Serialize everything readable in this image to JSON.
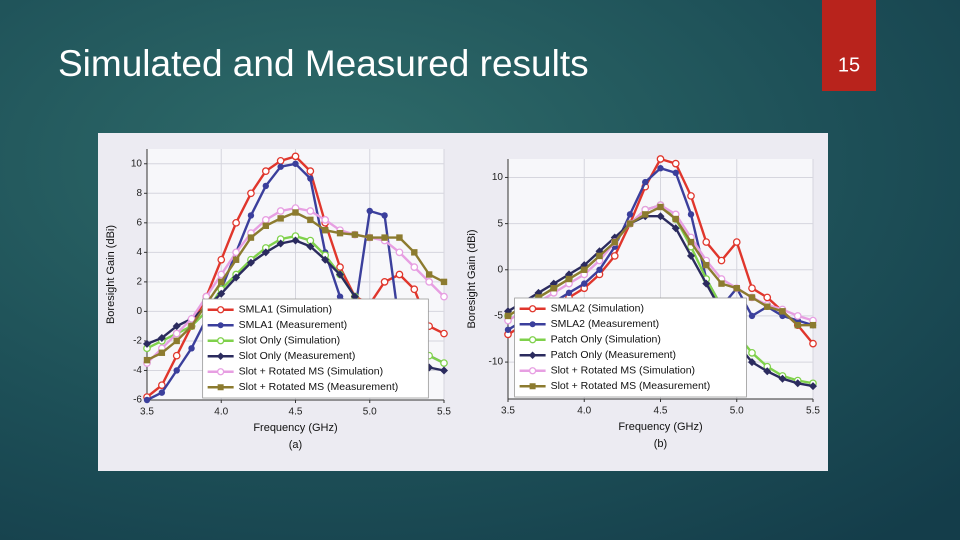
{
  "slide": {
    "title": "Simulated and Measured results",
    "number": "15"
  },
  "chart_data": [
    {
      "type": "line",
      "caption": "(a)",
      "x_label": "Frequency (GHz)",
      "y_label": "Boresight Gain (dBi)",
      "x": [
        3.5,
        3.6,
        3.7,
        3.8,
        3.9,
        4.0,
        4.1,
        4.2,
        4.3,
        4.4,
        4.5,
        4.6,
        4.7,
        4.8,
        4.9,
        5.0,
        5.1,
        5.2,
        5.3,
        5.4,
        5.5
      ],
      "xlim": [
        3.5,
        5.5
      ],
      "xticks": [
        3.5,
        {
          "value": 4,
          "label": "4.0"
        },
        4.5,
        {
          "value": 5,
          "label": "5.0"
        },
        5.5
      ],
      "ylim": [
        -6,
        11
      ],
      "yticks": [
        -6,
        -4,
        -2,
        0,
        2,
        4,
        6,
        8,
        10
      ],
      "grid": true,
      "legend": "lower-center",
      "series": [
        {
          "name": "SMLA1 (Simulation)",
          "color": "#e0362c",
          "marker": "circle-open",
          "values": [
            -5.8,
            -5,
            -3,
            -1,
            1,
            3.5,
            6,
            8,
            9.5,
            10.2,
            10.5,
            9.5,
            6,
            3,
            1,
            0.5,
            2,
            2.5,
            1.5,
            -1,
            -1.5
          ]
        },
        {
          "name": "SMLA1 (Measurement)",
          "color": "#3b3f9c",
          "marker": "circle",
          "values": [
            -6,
            -5.5,
            -4,
            -2.5,
            -0.5,
            1.5,
            4,
            6.5,
            8.5,
            9.8,
            10,
            9,
            4,
            1,
            0,
            6.8,
            6.5,
            -1,
            -2,
            -3,
            -3.5
          ]
        },
        {
          "name": "Slot Only (Simulation)",
          "color": "#7fd14b",
          "marker": "circle-open",
          "values": [
            -2.5,
            -2,
            -1.5,
            -1,
            0,
            1.5,
            2.5,
            3.5,
            4.3,
            4.9,
            5.1,
            4.8,
            3.8,
            2.5,
            1,
            -0.5,
            -1.5,
            -2,
            -2.5,
            -3,
            -3.5
          ]
        },
        {
          "name": "Slot Only (Measurement)",
          "color": "#2b2b5e",
          "marker": "diamond",
          "values": [
            -2.2,
            -1.8,
            -1,
            -0.5,
            0.3,
            1.2,
            2.3,
            3.3,
            4,
            4.6,
            4.8,
            4.4,
            3.5,
            2.5,
            1,
            -1,
            -2.5,
            -3,
            -3.2,
            -3.8,
            -4
          ]
        },
        {
          "name": "Slot + Rotated MS (Simulation)",
          "color": "#e79fe2",
          "marker": "circle-open",
          "values": [
            -3.5,
            -2.5,
            -1.5,
            -0.5,
            1,
            2.5,
            4,
            5.3,
            6.2,
            6.8,
            7,
            6.8,
            6.2,
            5.5,
            5.2,
            5,
            4.8,
            4,
            3,
            2,
            1
          ]
        },
        {
          "name": "Slot + Rotated MS (Measurement)",
          "color": "#8c7b2f",
          "marker": "square",
          "values": [
            -3.3,
            -2.8,
            -2,
            -1,
            0.5,
            2,
            3.5,
            5,
            5.8,
            6.3,
            6.7,
            6.2,
            5.5,
            5.3,
            5.2,
            5,
            5,
            5,
            4,
            2.5,
            2
          ]
        }
      ]
    },
    {
      "type": "line",
      "caption": "(b)",
      "x_label": "Frequency (GHz)",
      "y_label": "Boresight Gain (dBi)",
      "x": [
        3.5,
        3.6,
        3.7,
        3.8,
        3.9,
        4.0,
        4.1,
        4.2,
        4.3,
        4.4,
        4.5,
        4.6,
        4.7,
        4.8,
        4.9,
        5.0,
        5.1,
        5.2,
        5.3,
        5.4,
        5.5
      ],
      "xlim": [
        3.5,
        5.5
      ],
      "xticks": [
        3.5,
        {
          "value": 4,
          "label": "4.0"
        },
        4.5,
        {
          "value": 5,
          "label": "5.0"
        },
        5.5
      ],
      "ylim": [
        -14,
        12
      ],
      "yticks": [
        -10,
        -5,
        0,
        5,
        10
      ],
      "grid": true,
      "legend": "lower-center",
      "series": [
        {
          "name": "SMLA2 (Simulation)",
          "color": "#e0362c",
          "marker": "circle-open",
          "values": [
            -7,
            -6,
            -5,
            -4,
            -3,
            -2,
            -0.5,
            1.5,
            5,
            9,
            12,
            11.5,
            8,
            3,
            1,
            3,
            -2,
            -3,
            -4.5,
            -6,
            -8
          ]
        },
        {
          "name": "SMLA2 (Measurement)",
          "color": "#3b3f9c",
          "marker": "circle",
          "values": [
            -6.5,
            -5.5,
            -4.5,
            -3.5,
            -2.5,
            -1.5,
            0,
            2.5,
            6,
            9.5,
            11,
            10.5,
            6,
            -1,
            -4,
            -2,
            -5,
            -4,
            -5,
            -5.5,
            -6
          ]
        },
        {
          "name": "Patch Only (Simulation)",
          "color": "#7fd14b",
          "marker": "circle-open",
          "values": [
            -5,
            -4,
            -3,
            -2,
            -1,
            0,
            1.5,
            3,
            5,
            6.5,
            7,
            5.5,
            2.5,
            -1,
            -4,
            -7,
            -9,
            -10.5,
            -11.5,
            -12,
            -12.3
          ]
        },
        {
          "name": "Patch Only (Measurement)",
          "color": "#2b2b5e",
          "marker": "diamond",
          "values": [
            -4.5,
            -3.5,
            -2.5,
            -1.5,
            -0.5,
            0.5,
            2,
            3.5,
            5,
            5.8,
            5.8,
            4.5,
            1.5,
            -1.5,
            -4.5,
            -8,
            -10,
            -11,
            -11.8,
            -12.3,
            -12.6
          ]
        },
        {
          "name": "Slot + Rotated MS (Simulation)",
          "color": "#e79fe2",
          "marker": "circle-open",
          "values": [
            -5.5,
            -4.5,
            -3.5,
            -2.5,
            -1.5,
            -0.5,
            1,
            3,
            5,
            6.5,
            7,
            6,
            3.5,
            1,
            -1,
            -2,
            -3,
            -3.8,
            -4.3,
            -5,
            -5.5
          ]
        },
        {
          "name": "Slot + Rotated MS (Measurement)",
          "color": "#8c7b2f",
          "marker": "square",
          "values": [
            -5,
            -4,
            -3,
            -2,
            -1,
            0,
            1.5,
            3,
            5,
            6,
            6.8,
            5.5,
            3,
            0.5,
            -1.5,
            -2,
            -3,
            -4,
            -4.5,
            -6,
            -6
          ]
        }
      ]
    }
  ]
}
